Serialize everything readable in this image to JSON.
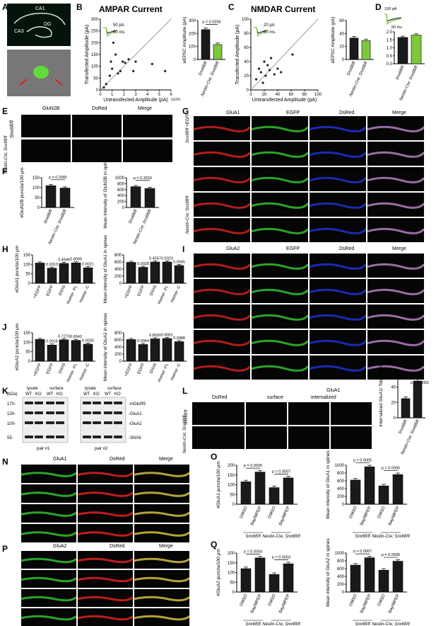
{
  "panels": {
    "A": {
      "label": "A",
      "regions": [
        "CA1",
        "CA3",
        "DG"
      ]
    },
    "B": {
      "label": "B",
      "title": "AMPAR Current",
      "scale_y": "50 pA",
      "scale_x": "50 ms",
      "ylabel": "Transfected Amplitude (pA)",
      "xlabel": "Untransfected Amplitude (pA)",
      "x_ticks": [
        "0",
        "1",
        "2",
        "3",
        "4",
        "5",
        "6"
      ],
      "x_unit": "(x10²)",
      "y_ticks": [
        "0",
        "50",
        "100",
        "150",
        "200",
        "250",
        "300"
      ],
      "bar_ylabel": "eEPSC Amplitude (pA)",
      "bar_ticks": [
        "0",
        "100",
        "200",
        "300"
      ],
      "pval": "p = 0.0256"
    },
    "C": {
      "label": "C",
      "title": "NMDAR Current",
      "scale_y": "20 pA",
      "scale_x": "50 ms",
      "ylabel": "Transfected Amplitude (pA)",
      "xlabel": "Untransfected Amplitude (pA)",
      "x_ticks": [
        "0",
        "20",
        "40",
        "60",
        "80",
        "100"
      ],
      "y_ticks": [
        "0",
        "20",
        "40",
        "60",
        "80",
        "100"
      ],
      "bar_ylabel": "eEPSC Amplitude (pA)",
      "bar_ticks": [
        "0",
        "20",
        "40",
        "60"
      ]
    },
    "D": {
      "label": "D",
      "scale_y": "100 pA",
      "scale_x": "50 ms",
      "bar_ticks": [
        "0.0",
        "0.5",
        "1.0",
        "1.5",
        "2.0"
      ]
    },
    "E": {
      "label": "E",
      "cols": [
        "GluN2B",
        "DsRed",
        "Merge"
      ],
      "rows": [
        "Snx6fl/fl",
        "Nestin-Cre; Snx6fl/fl"
      ]
    },
    "F": {
      "label": "F",
      "ylabel1": "#GluN2B puncta/100 μm",
      "ylabel2": "Mean intensity of GluN2B in spines",
      "ticks1": [
        "0",
        "50",
        "100",
        "150"
      ],
      "ticks2": [
        "0",
        "200",
        "400",
        "600",
        "800",
        "1000"
      ],
      "p1": "p = 0.2081",
      "p2": "p = 0.3316"
    },
    "G": {
      "label": "G",
      "cols": [
        "GluA1",
        "EGFP",
        "DsRed",
        "Merge"
      ]
    },
    "H": {
      "label": "H",
      "ylabel1": "#GluA1 puncta/100 μm",
      "ylabel2": "Mean intensity of GluA1 in spines",
      "ticks1": [
        "0",
        "50",
        "100",
        "150"
      ],
      "ticks2": [
        "0",
        "200",
        "400",
        "600",
        "800"
      ],
      "pv1": [
        "0.0013",
        "0.4596",
        "0.8000",
        "0.0021"
      ],
      "pv2": [
        "0.0028",
        "0.4557",
        "0.5323",
        "0.0045"
      ]
    },
    "I": {
      "label": "I",
      "cols": [
        "GluA2",
        "EGFP",
        "DsRed",
        "Merge"
      ]
    },
    "J": {
      "label": "J",
      "ylabel1": "#GluA2 puncta/100 μm",
      "ylabel2": "Mean intensity of GluA2 in spines",
      "ticks1": [
        "0",
        "50",
        "100",
        "150"
      ],
      "ticks2": [
        "0",
        "200",
        "400",
        "600",
        "800"
      ],
      "pv1": [
        "0.0016",
        "0.7273",
        "0.6542",
        "0.0030"
      ],
      "pv2": [
        "0.0064",
        "0.8030",
        "0.8051",
        "0.0088"
      ]
    },
    "K": {
      "label": "K",
      "kda": "(kDa)",
      "markers": [
        "170-",
        "130-",
        "100-",
        "55-"
      ],
      "groups": [
        "lysate",
        "surface",
        "lysate",
        "surface"
      ],
      "lanes": [
        "WT",
        "KO",
        "WT",
        "KO"
      ],
      "bands": [
        "-mGluR5",
        "-GluA1",
        "-GluA2",
        "-SNX6"
      ],
      "pairs": [
        "pair #1",
        "pair #2"
      ]
    },
    "L": {
      "label": "L",
      "cols": [
        "DsRed",
        "surface",
        "internalized"
      ],
      "group": "GluA1"
    },
    "M": {
      "label": "M",
      "ylabel": "Internalized GluA1/ Total GluA1",
      "ticks": [
        "0",
        "20",
        "40",
        "60"
      ],
      "pval": "p < 0.0001"
    },
    "N": {
      "label": "N",
      "cols": [
        "GluA1",
        "DsRed",
        "Merge"
      ]
    },
    "O": {
      "label": "O",
      "ylabel1": "#GluA1 puncta/100 μm",
      "ylabel2": "Mean intensity of GluA1 in spines",
      "ticks1": [
        "0",
        "50",
        "100",
        "150",
        "200"
      ],
      "ticks2": [
        "0",
        "200",
        "400",
        "600",
        "800",
        "1000"
      ],
      "p1a": "p = 0.0005",
      "p1b": "p = 0.0007",
      "p2a": "p = 0.0005",
      "p2b": "p = 0.0005"
    },
    "P": {
      "label": "P",
      "cols": [
        "GluA2",
        "DsRed",
        "Merge"
      ]
    },
    "Q": {
      "label": "Q",
      "ylabel1": "#GluA2 puncta/100 μm",
      "ylabel2": "Mean intensity of GluA2 in spines",
      "ticks1": [
        "0",
        "50",
        "100",
        "150",
        "200"
      ],
      "ticks2": [
        "0",
        "200",
        "400",
        "600",
        "800",
        "1000"
      ],
      "p1a": "p = 0.0004",
      "p1b": "p = 0.0003",
      "p2a": "p = 0.0007",
      "p2b": "p = 0.0006"
    }
  },
  "labels": {
    "snx6": "Snx6fl/fl",
    "nestin": "Nestin-Cre; Snx6fl/fl",
    "egfp": "+EGFP",
    "snx6_plus_egfp": "Snx6fl/fl +EGFP",
    "cond": [
      "EGFP",
      "SNX6",
      "Homer -FL",
      "Homer -C"
    ],
    "dmso": "DMSO",
    "baympep": "Bay/MPEP"
  },
  "chart_data": [
    {
      "panel": "B",
      "type": "scatter",
      "xlabel": "Untransfected Amplitude (pA)",
      "ylabel": "Transfected Amplitude (pA)",
      "xlim": [
        0,
        6
      ],
      "ylim": [
        0,
        300
      ],
      "x": [
        0.3,
        0.5,
        0.8,
        0.9,
        1.0,
        1.1,
        1.3,
        1.5,
        1.7,
        1.9,
        2.1,
        2.4,
        2.8,
        3.0,
        4.4,
        5.5
      ],
      "y": [
        10,
        25,
        60,
        120,
        90,
        200,
        150,
        70,
        80,
        120,
        115,
        130,
        80,
        120,
        110,
        80
      ]
    },
    {
      "panel": "B",
      "type": "bar",
      "ylabel": "eEPSC Amplitude (pA)",
      "categories": [
        "Snx6fl/fl",
        "Nestin-Cre; Snx6fl/fl"
      ],
      "values": [
        230,
        115
      ],
      "ylim": [
        0,
        300
      ]
    },
    {
      "panel": "C",
      "type": "scatter",
      "xlabel": "Untransfected Amplitude (pA)",
      "ylabel": "Transfected Amplitude (pA)",
      "xlim": [
        0,
        100
      ],
      "ylim": [
        0,
        100
      ],
      "x": [
        8,
        12,
        15,
        18,
        20,
        22,
        25,
        28,
        30,
        35,
        40,
        45,
        62
      ],
      "y": [
        15,
        30,
        25,
        10,
        40,
        20,
        35,
        28,
        45,
        22,
        30,
        25,
        50
      ]
    },
    {
      "panel": "C",
      "type": "bar",
      "ylabel": "eEPSC Amplitude (pA)",
      "categories": [
        "Snx6fl/fl",
        "Nestin-Cre; Snx6fl/fl"
      ],
      "values": [
        33,
        29
      ],
      "ylim": [
        0,
        60
      ]
    },
    {
      "panel": "D",
      "type": "bar",
      "categories": [
        "Snx6fl/fl",
        "Nestin-Cre; Snx6fl/fl"
      ],
      "values": [
        1.65,
        1.8
      ],
      "ylim": [
        0,
        2
      ]
    },
    {
      "panel": "F",
      "type": "bar",
      "ylabel": "#GluN2B puncta/100 μm",
      "categories": [
        "Snx6fl/fl",
        "Nestin-Cre; Snx6fl/fl"
      ],
      "values": [
        110,
        98
      ],
      "ylim": [
        0,
        150
      ]
    },
    {
      "panel": "F",
      "type": "bar",
      "ylabel": "Mean intensity of GluN2B in spines",
      "categories": [
        "Snx6fl/fl",
        "Nestin-Cre; Snx6fl/fl"
      ],
      "values": [
        700,
        640
      ],
      "ylim": [
        0,
        1000
      ]
    },
    {
      "panel": "H",
      "type": "bar",
      "ylabel": "#GluA1 puncta/100 μm",
      "categories": [
        "+EGFP",
        "EGFP",
        "SNX6",
        "Homer -FL",
        "Homer -C"
      ],
      "values": [
        107,
        80,
        105,
        108,
        82
      ],
      "ylim": [
        0,
        150
      ]
    },
    {
      "panel": "H",
      "type": "bar",
      "ylabel": "Mean intensity of GluA1 in spines",
      "categories": [
        "+EGFP",
        "EGFP",
        "SNX6",
        "Homer -FL",
        "Homer -C"
      ],
      "values": [
        590,
        450,
        600,
        600,
        500
      ],
      "ylim": [
        0,
        800
      ]
    },
    {
      "panel": "J",
      "type": "bar",
      "ylabel": "#GluA2 puncta/100 μm",
      "categories": [
        "+EGFP",
        "EGFP",
        "SNX6",
        "Homer -FL",
        "Homer -C"
      ],
      "values": [
        115,
        85,
        113,
        110,
        90
      ],
      "ylim": [
        0,
        150
      ]
    },
    {
      "panel": "J",
      "type": "bar",
      "ylabel": "Mean intensity of GluA2 in spines",
      "categories": [
        "+EGFP",
        "EGFP",
        "SNX6",
        "Homer -FL",
        "Homer -C"
      ],
      "values": [
        610,
        470,
        630,
        640,
        550
      ],
      "ylim": [
        0,
        800
      ]
    },
    {
      "panel": "M",
      "type": "bar",
      "ylabel": "Internalized GluA1/ Total GluA1",
      "categories": [
        "Snx6fl/fl",
        "Nestin-Cre; Snx6fl/fl"
      ],
      "values": [
        25,
        48
      ],
      "ylim": [
        0,
        60
      ]
    },
    {
      "panel": "O",
      "type": "bar",
      "ylabel": "#GluA1 puncta/100 μm",
      "categories": [
        "DMSO",
        "Bay/MPEP",
        "DMSO",
        "Bay/MPEP"
      ],
      "values": [
        115,
        165,
        85,
        135
      ],
      "ylim": [
        0,
        200
      ]
    },
    {
      "panel": "O",
      "type": "bar",
      "ylabel": "Mean intensity of GluA1 in spines",
      "categories": [
        "DMSO",
        "Bay/MPEP",
        "DMSO",
        "Bay/MPEP"
      ],
      "values": [
        620,
        960,
        470,
        760
      ],
      "ylim": [
        0,
        1000
      ]
    },
    {
      "panel": "Q",
      "type": "bar",
      "ylabel": "#GluA2 puncta/100 μm",
      "categories": [
        "DMSO",
        "Bay/MPEP",
        "DMSO",
        "Bay/MPEP"
      ],
      "values": [
        120,
        175,
        90,
        145
      ],
      "ylim": [
        0,
        200
      ]
    },
    {
      "panel": "Q",
      "type": "bar",
      "ylabel": "Mean intensity of GluA2 in spines",
      "categories": [
        "DMSO",
        "Bay/MPEP",
        "DMSO",
        "Bay/MPEP"
      ],
      "values": [
        690,
        880,
        560,
        790
      ],
      "ylim": [
        0,
        1000
      ]
    }
  ],
  "colors": {
    "green": "#7ec83a",
    "red": "#e0201a",
    "blue": "#1a2bd8",
    "dark": "#1a1a1a"
  }
}
